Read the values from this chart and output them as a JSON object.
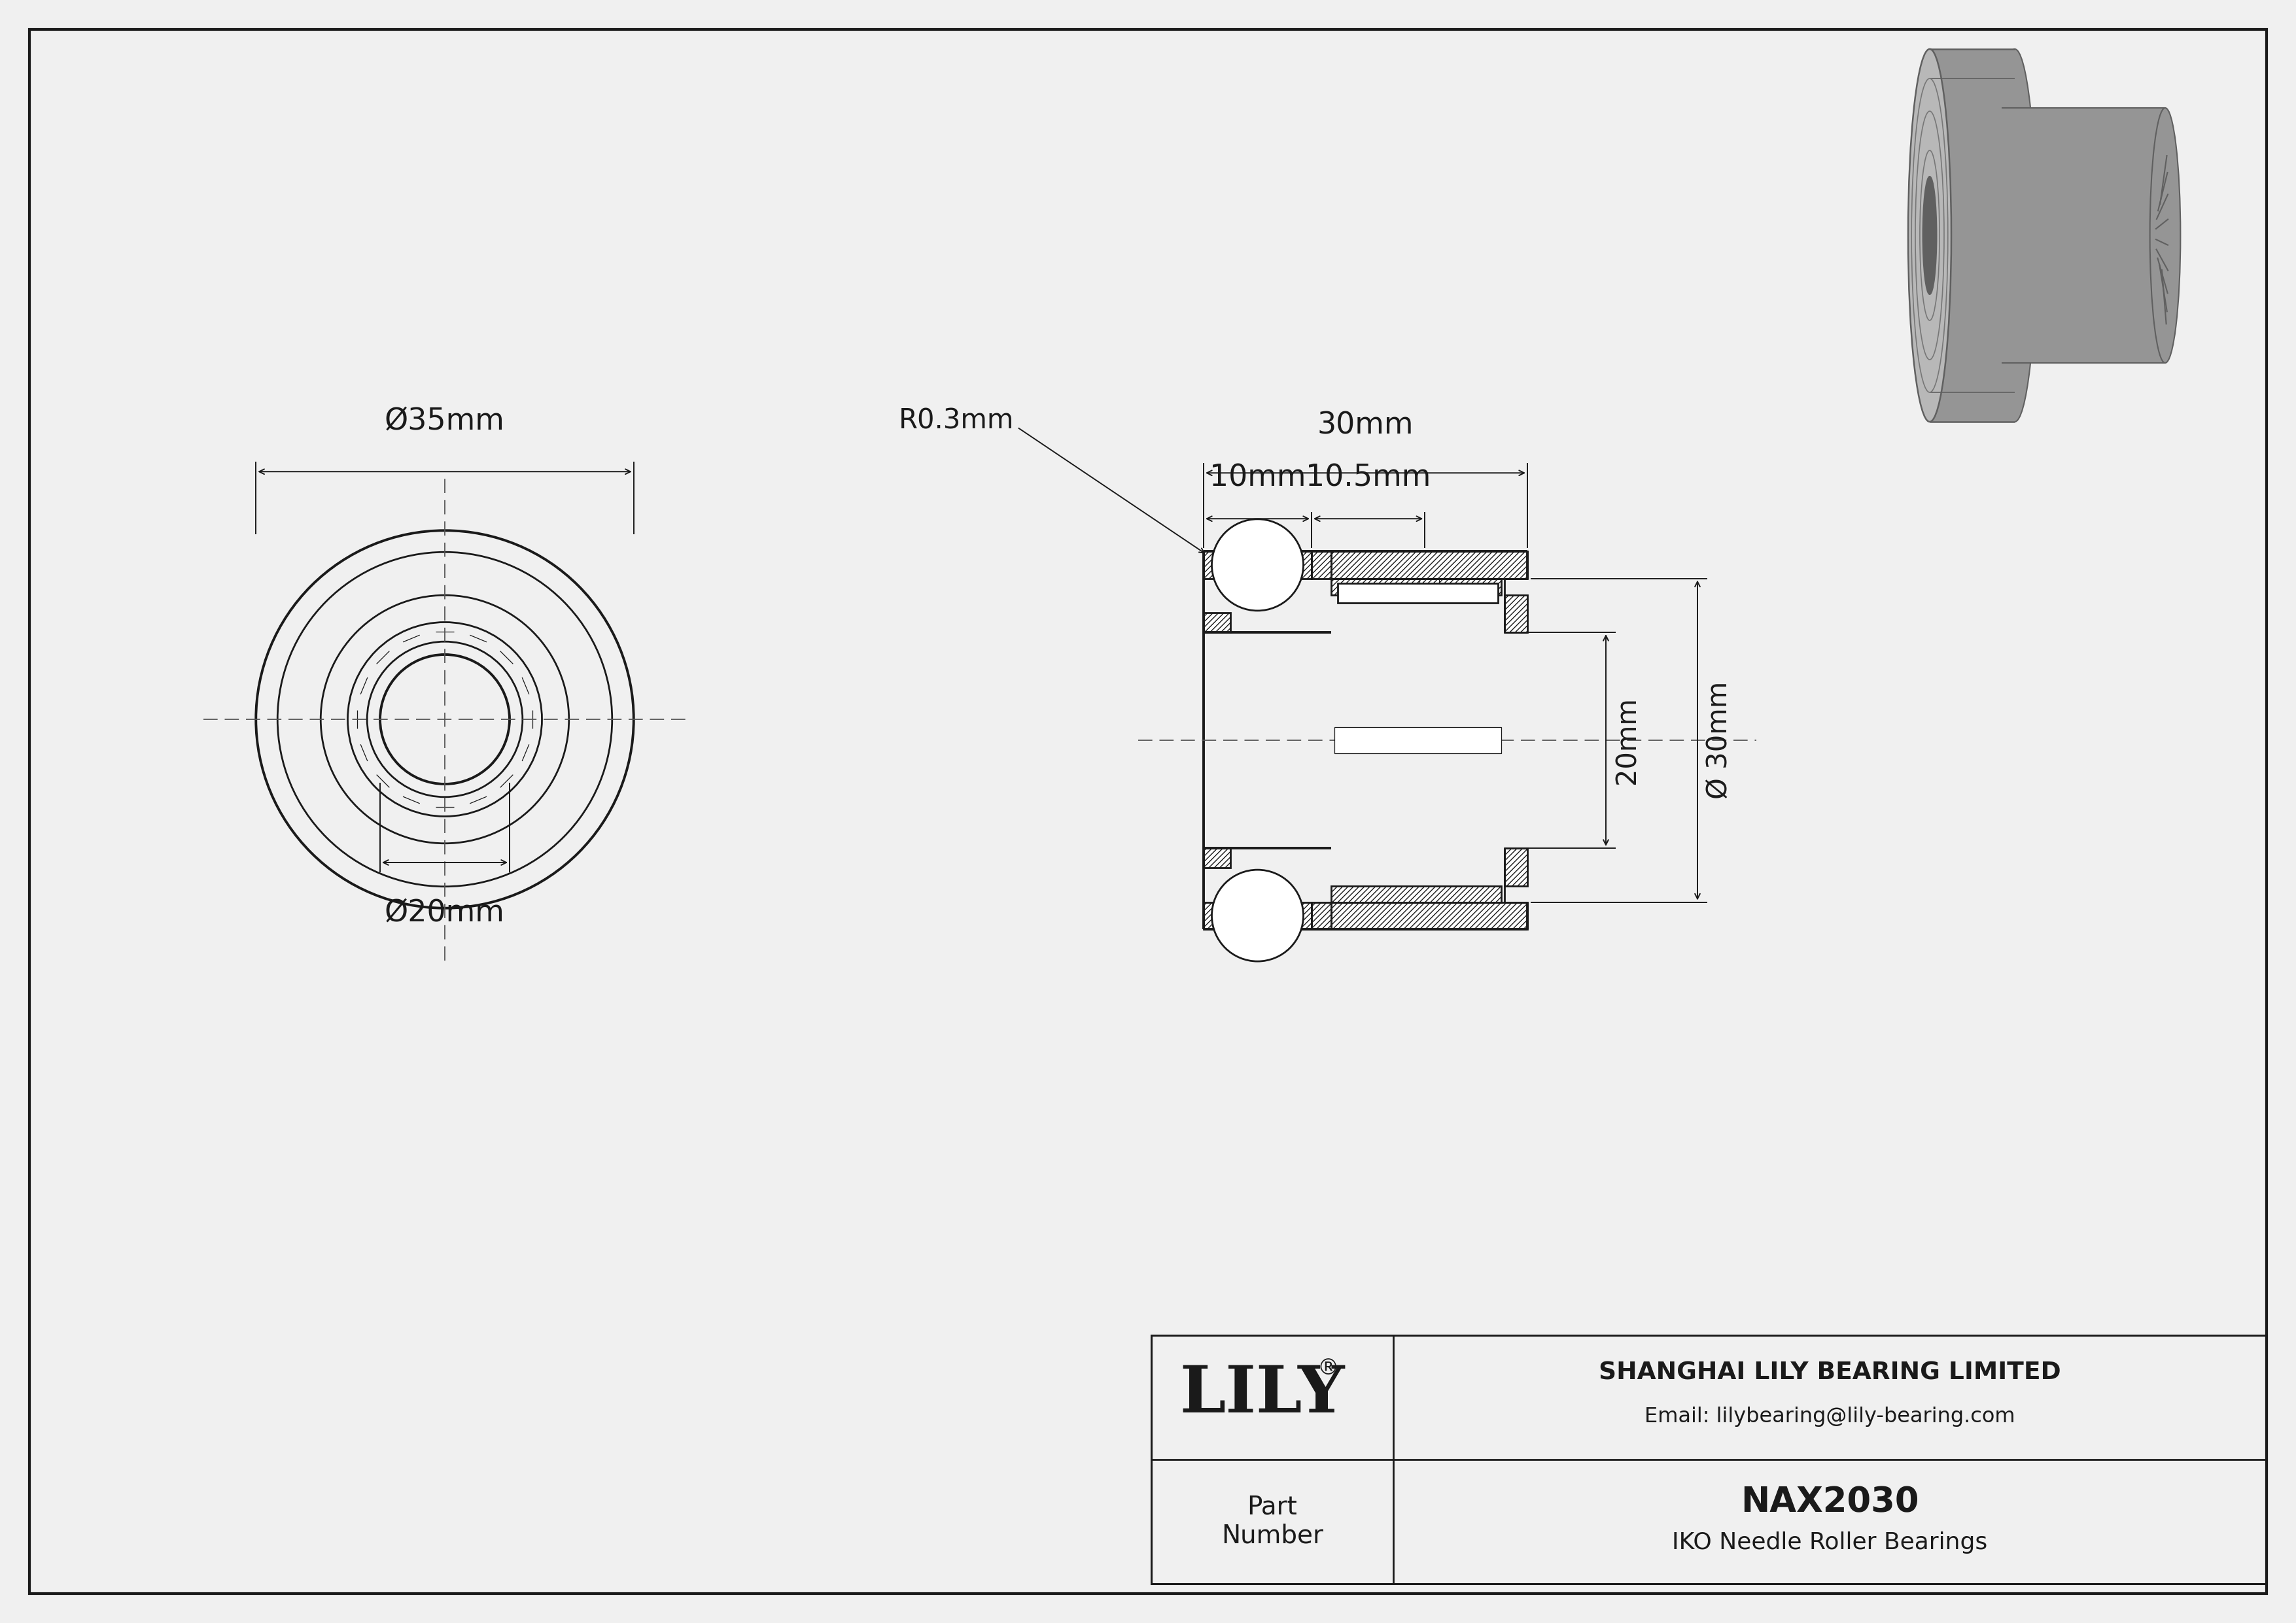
{
  "bg_color": "#f0f0f0",
  "line_color": "#1a1a1a",
  "title": "NAX2030",
  "subtitle": "IKO Needle Roller Bearings",
  "company": "SHANGHAI LILY BEARING LIMITED",
  "email": "Email: lilybearing@lily-bearing.com",
  "logo_text": "LILY",
  "logo_reg": "®",
  "part_label": "Part\nNumber",
  "dim_OD": "Ø35mm",
  "dim_ID": "Ø20mm",
  "dim_30mm": "30mm",
  "dim_10mm": "10mm",
  "dim_105mm": "10.5mm",
  "dim_r03": "R0.3mm",
  "dim_20mm": "20mm",
  "dim_30d": "Ø 30mm",
  "gray_3d_light": "#b8b8b8",
  "gray_3d_mid": "#959595",
  "gray_3d_dark": "#777777",
  "gray_3d_darker": "#606060"
}
